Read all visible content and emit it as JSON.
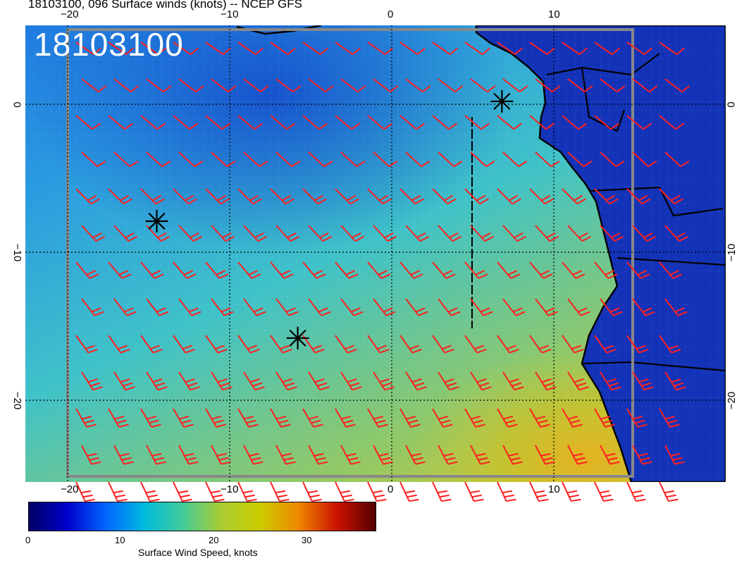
{
  "title": "18103100, 096 Surface winds (knots) -- NCEP GFS",
  "stamp": "18103100",
  "map": {
    "lon_range": [
      -22.5,
      20.5
    ],
    "lat_range": [
      -25.5,
      5.5
    ],
    "lon_ticks": [
      "−20",
      "−10",
      "0",
      "10"
    ],
    "lat_ticks_left": [
      "0",
      "−10",
      "−20"
    ],
    "lat_ticks_right": [
      "0",
      "−10",
      "−20"
    ],
    "gridlines": "dotted",
    "markers": [
      {
        "name": "star-marker",
        "lon": -14.5,
        "lat": -7.9
      },
      {
        "name": "star-marker",
        "lon": -5.8,
        "lat": -15.8
      },
      {
        "name": "star-marker",
        "lon": 6.8,
        "lat": 0.2
      }
    ],
    "barb_color": "#ff2020",
    "land_color": "#1030c0",
    "coast_color": "#000000"
  },
  "colorbar": {
    "label": "Surface Wind Speed, knots",
    "min": 0,
    "max": 37,
    "ticks": [
      "0",
      "10",
      "20",
      "30"
    ],
    "colors": [
      "#000066",
      "#0000cc",
      "#0066ff",
      "#00bbdd",
      "#44cc99",
      "#aacc33",
      "#cccc00",
      "#ee8800",
      "#cc1100",
      "#550000"
    ]
  }
}
